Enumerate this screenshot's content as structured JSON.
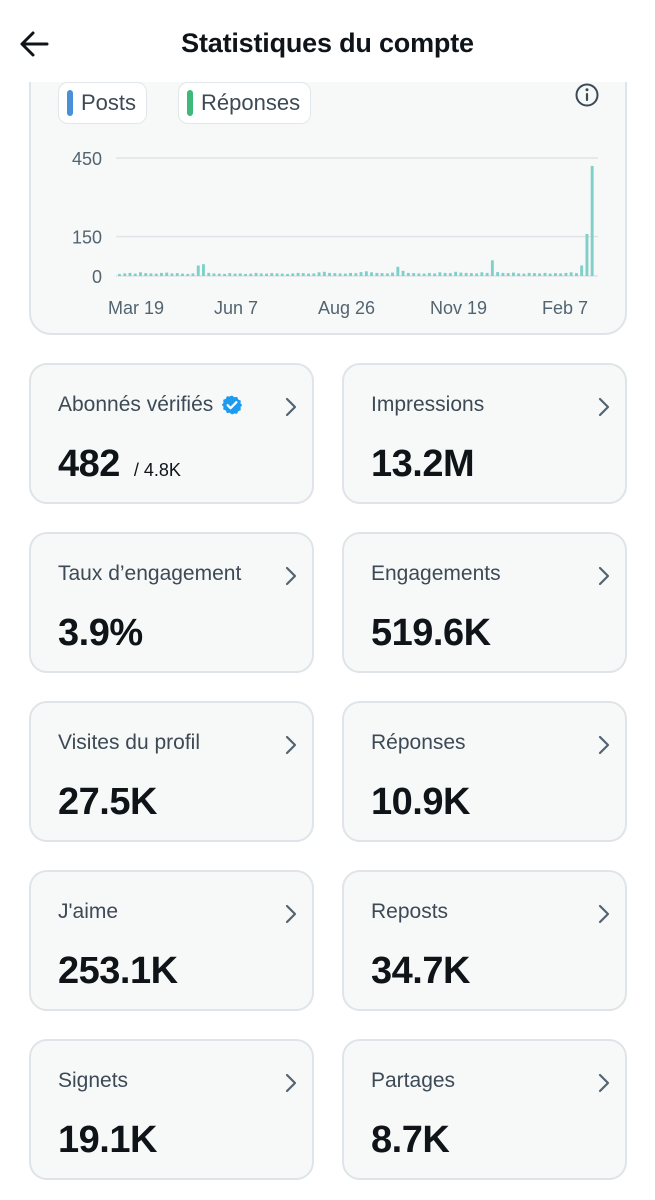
{
  "header": {
    "title": "Statistiques du compte"
  },
  "icons": {
    "back": "arrow-left-icon",
    "info": "info-circle-icon",
    "chevron": "chevron-right-icon",
    "verified": "verified-badge-icon"
  },
  "colors": {
    "posts": "#4a90d9",
    "reponses": "#3fb97a",
    "bars": "#7fd0c9",
    "verified": "#1d9bf0"
  },
  "legend": [
    {
      "label": "Posts",
      "color": "#4a90d9"
    },
    {
      "label": "Réponses",
      "color": "#3fb97a"
    }
  ],
  "chart_data": {
    "type": "bar",
    "y_ticks": [
      "450",
      "150",
      "0"
    ],
    "y_tick_values": [
      450,
      150,
      0
    ],
    "ylim": [
      0,
      450
    ],
    "x_ticks": [
      "Mar 19",
      "Jun 7",
      "Aug 26",
      "Nov 19",
      "Feb 7"
    ],
    "series": [
      {
        "name": "Posts",
        "values": []
      },
      {
        "name": "Réponses",
        "values": []
      }
    ],
    "approx_series": [
      8,
      10,
      12,
      9,
      14,
      11,
      10,
      9,
      12,
      13,
      10,
      11,
      9,
      8,
      10,
      40,
      45,
      12,
      10,
      9,
      8,
      11,
      9,
      10,
      8,
      9,
      12,
      10,
      9,
      11,
      10,
      9,
      8,
      10,
      12,
      11,
      9,
      10,
      14,
      16,
      12,
      11,
      10,
      9,
      12,
      11,
      15,
      18,
      14,
      12,
      11,
      10,
      13,
      35,
      20,
      12,
      11,
      10,
      9,
      12,
      10,
      14,
      12,
      11,
      16,
      13,
      12,
      11,
      10,
      14,
      12,
      60,
      15,
      12,
      11,
      13,
      10,
      9,
      12,
      11,
      10,
      12,
      9,
      11,
      10,
      12,
      14,
      11,
      40,
      160,
      420
    ],
    "grid": true
  },
  "stats": [
    {
      "label": "Abonnés vérifiés",
      "value": "482",
      "sub": "/ 4.8K",
      "verified": true
    },
    {
      "label": "Impressions",
      "value": "13.2M"
    },
    {
      "label": "Taux d’engagement",
      "value": "3.9%"
    },
    {
      "label": "Engagements",
      "value": "519.6K"
    },
    {
      "label": "Visites du profil",
      "value": "27.5K"
    },
    {
      "label": "Réponses",
      "value": "10.9K"
    },
    {
      "label": "J'aime",
      "value": "253.1K"
    },
    {
      "label": "Reposts",
      "value": "34.7K"
    },
    {
      "label": "Signets",
      "value": "19.1K"
    },
    {
      "label": "Partages",
      "value": "8.7K"
    }
  ]
}
